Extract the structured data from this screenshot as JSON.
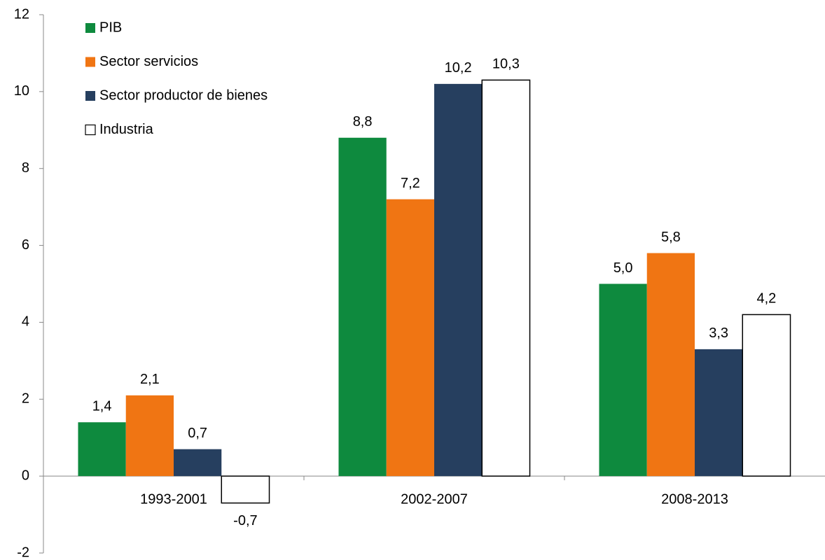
{
  "chart_data": {
    "type": "bar",
    "categories": [
      "1993-2001",
      "2002-2007",
      "2008-2013"
    ],
    "series": [
      {
        "name": "PIB",
        "color": "#0e8a3e",
        "values": [
          1.4,
          8.8,
          5.0
        ],
        "value_labels": [
          "1,4",
          "8,8",
          "5,0"
        ]
      },
      {
        "name": "Sector servicios",
        "color": "#f07513",
        "values": [
          2.1,
          7.2,
          5.8
        ],
        "value_labels": [
          "2,1",
          "7,2",
          "5,8"
        ]
      },
      {
        "name": "Sector productor de bienes",
        "color": "#263f5f",
        "values": [
          0.7,
          10.2,
          3.3
        ],
        "value_labels": [
          "0,7",
          "10,2",
          "3,3"
        ]
      },
      {
        "name": "Industria",
        "color": "#ffffff",
        "edgecolor": "#000000",
        "values": [
          -0.7,
          10.3,
          4.2
        ],
        "value_labels": [
          "-0,7",
          "10,3",
          "4,2"
        ]
      }
    ],
    "ylim": [
      -2,
      12
    ],
    "yticks": [
      -2,
      0,
      2,
      4,
      6,
      8,
      10,
      12
    ],
    "grid": false,
    "legend": "upper left"
  }
}
